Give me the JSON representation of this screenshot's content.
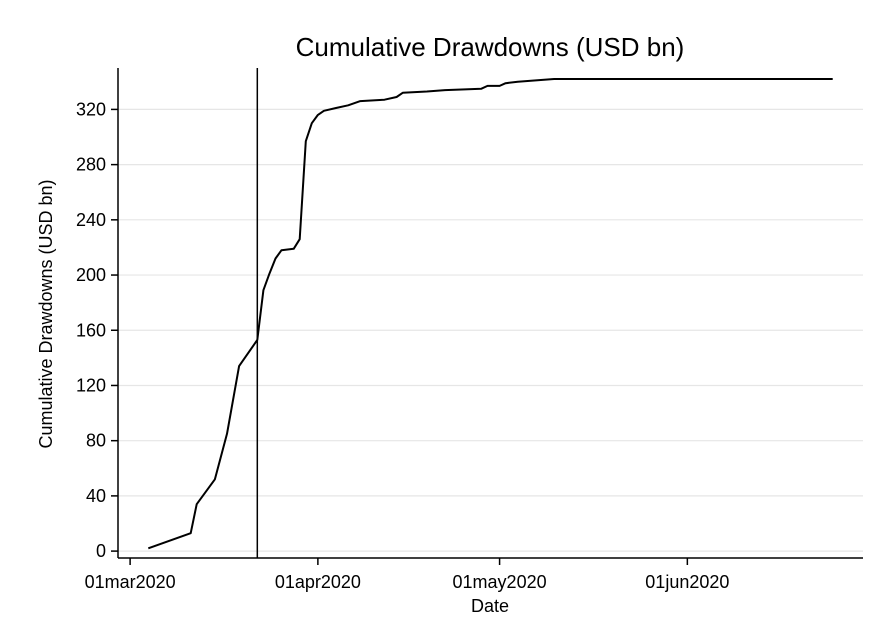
{
  "chart_data": {
    "type": "line",
    "title": "Cumulative Drawdowns (USD bn)",
    "xlabel": "Date",
    "ylabel": "Cumulative Drawdowns (USD bn)",
    "xlim": [
      "2020-02-28",
      "2020-06-30"
    ],
    "ylim": [
      -5,
      350
    ],
    "yticks": [
      0,
      40,
      80,
      120,
      160,
      200,
      240,
      280,
      320
    ],
    "xticks": [
      {
        "date": "2020-03-01",
        "label": "01mar2020"
      },
      {
        "date": "2020-04-01",
        "label": "01apr2020"
      },
      {
        "date": "2020-05-01",
        "label": "01may2020"
      },
      {
        "date": "2020-06-01",
        "label": "01jun2020"
      }
    ],
    "grid": true,
    "vline": "2020-03-22",
    "series": [
      {
        "color": "#000000",
        "x": [
          "2020-03-04",
          "2020-03-11",
          "2020-03-12",
          "2020-03-15",
          "2020-03-17",
          "2020-03-19",
          "2020-03-22",
          "2020-03-23",
          "2020-03-24",
          "2020-03-25",
          "2020-03-26",
          "2020-03-28",
          "2020-03-29",
          "2020-03-30",
          "2020-03-31",
          "2020-04-01",
          "2020-04-02",
          "2020-04-04",
          "2020-04-06",
          "2020-04-08",
          "2020-04-12",
          "2020-04-14",
          "2020-04-15",
          "2020-04-19",
          "2020-04-22",
          "2020-04-28",
          "2020-04-29",
          "2020-05-01",
          "2020-05-02",
          "2020-05-04",
          "2020-05-07",
          "2020-05-10",
          "2020-06-25"
        ],
        "y": [
          2,
          13,
          34,
          52,
          85,
          134,
          153,
          189,
          201,
          212,
          218,
          219,
          226,
          297,
          310,
          316,
          319,
          321,
          323,
          326,
          327,
          329,
          332,
          333,
          334,
          335,
          337,
          337,
          339,
          340,
          341,
          342,
          342
        ]
      }
    ]
  }
}
